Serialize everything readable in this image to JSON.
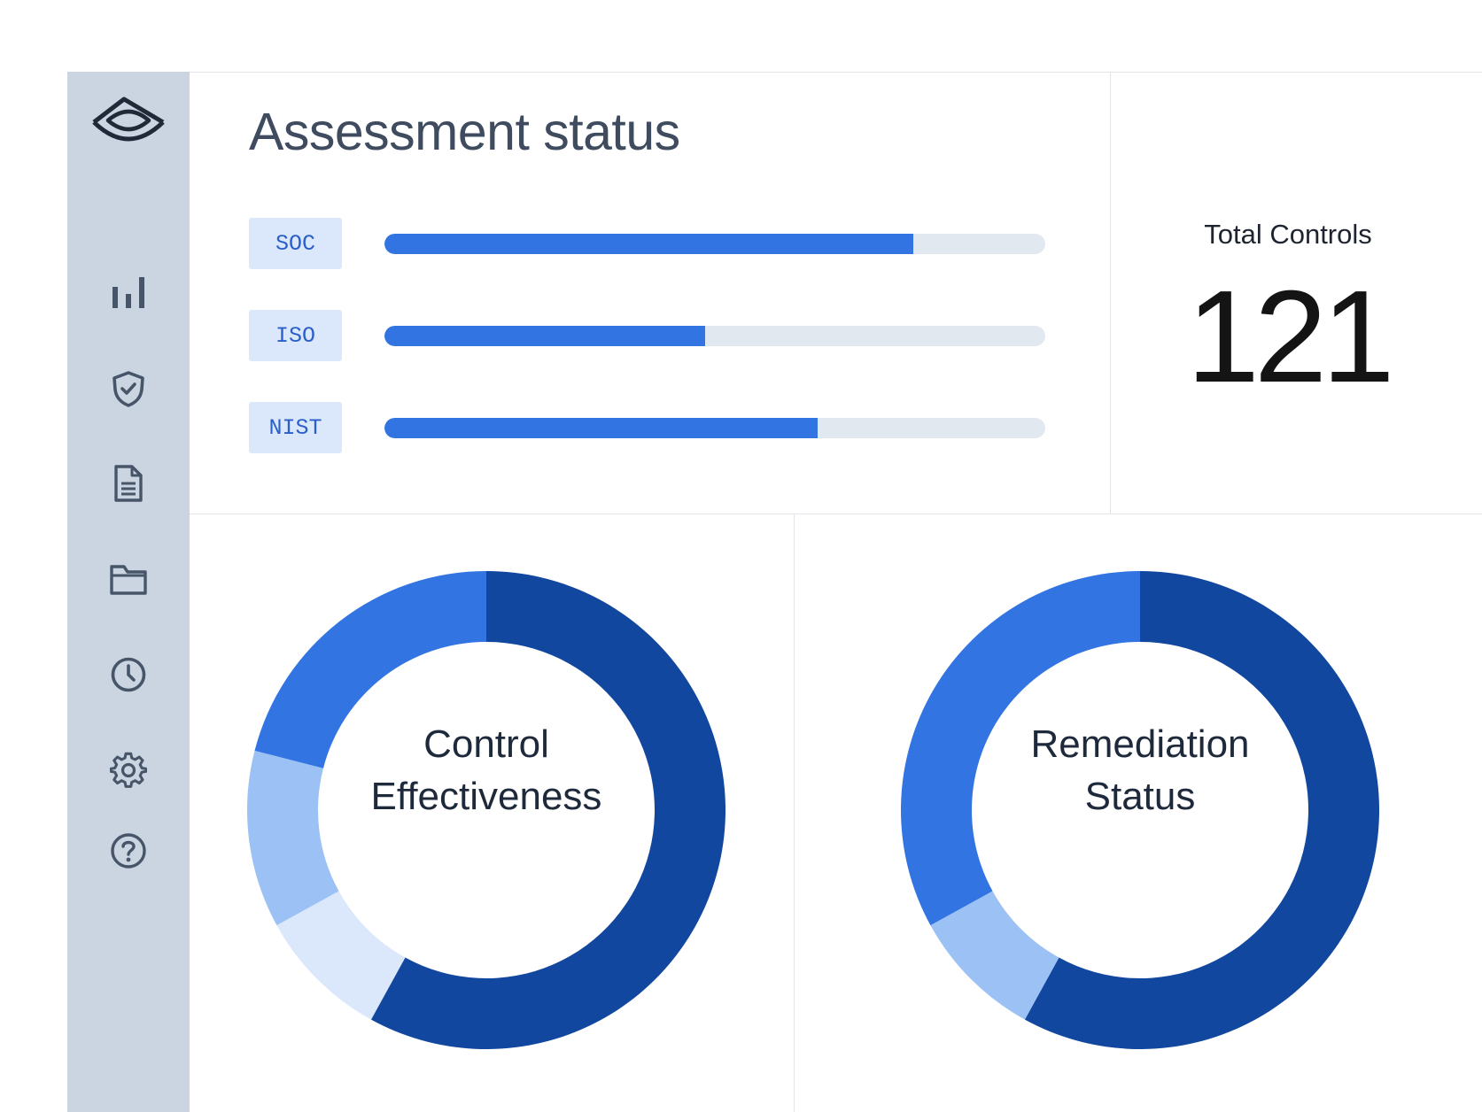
{
  "colors": {
    "sidebar_bg": "#cbd5e1",
    "sidebar_icon": "#475569",
    "accent": "#3274e2",
    "accent_dark": "#11479f",
    "accent_light": "#9cc1f4",
    "accent_pale": "#dbe8fc",
    "track": "#e2e8f0"
  },
  "sidebar": {
    "items": [
      {
        "icon": "brand-logo-icon"
      },
      {
        "icon": "bar-chart-icon"
      },
      {
        "icon": "shield-check-icon"
      },
      {
        "icon": "document-icon"
      },
      {
        "icon": "folder-icon"
      },
      {
        "icon": "clock-icon"
      },
      {
        "icon": "gear-icon"
      },
      {
        "icon": "help-icon"
      }
    ]
  },
  "assessment": {
    "title": "Assessment status",
    "frameworks": [
      {
        "label": "SOC",
        "progress": 0.8
      },
      {
        "label": "ISO",
        "progress": 0.485
      },
      {
        "label": "NIST",
        "progress": 0.655
      }
    ]
  },
  "total_controls": {
    "label": "Total Controls",
    "value": "121"
  },
  "chart_data": [
    {
      "type": "pie",
      "title": "",
      "center_label": [
        "Control",
        "Effectiveness"
      ],
      "values": [
        58,
        9,
        12,
        21
      ],
      "colors": [
        "#11479f",
        "#dbe8fc",
        "#9cc1f4",
        "#3274e2"
      ],
      "start": "12 o'clock",
      "direction": "clockwise"
    },
    {
      "type": "pie",
      "title": "",
      "center_label": [
        "Remediation",
        "Status"
      ],
      "values": [
        58,
        9,
        33
      ],
      "colors": [
        "#11479f",
        "#9cc1f4",
        "#3274e2"
      ],
      "start": "12 o'clock",
      "direction": "clockwise"
    }
  ]
}
